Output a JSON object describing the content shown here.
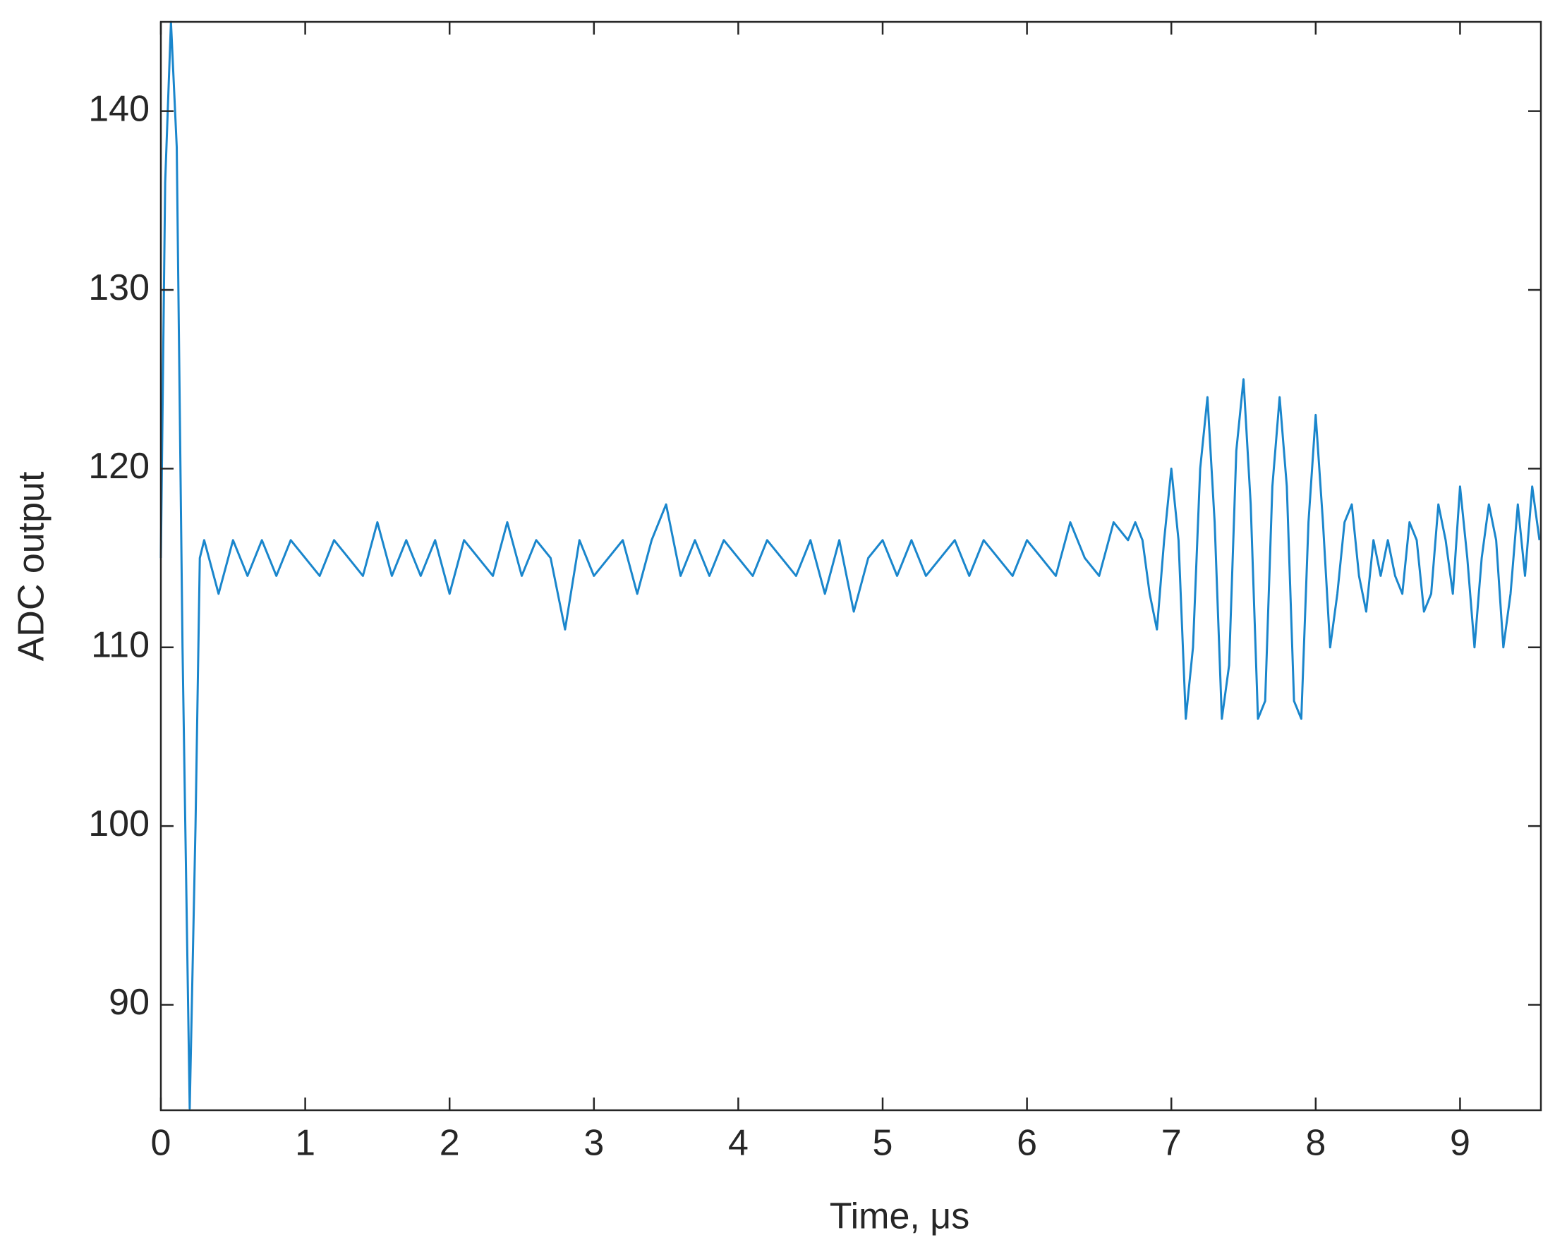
{
  "chart_data": {
    "type": "line",
    "xlabel": "Time, μs",
    "ylabel": "ADC output",
    "x": [
      0,
      0.03,
      0.07,
      0.11,
      0.15,
      0.2,
      0.24,
      0.27,
      0.3,
      0.4,
      0.5,
      0.6,
      0.7,
      0.8,
      0.9,
      1.0,
      1.1,
      1.2,
      1.3,
      1.4,
      1.5,
      1.6,
      1.7,
      1.8,
      1.9,
      2.0,
      2.1,
      2.2,
      2.3,
      2.4,
      2.5,
      2.6,
      2.7,
      2.8,
      2.9,
      3.0,
      3.1,
      3.2,
      3.3,
      3.4,
      3.5,
      3.6,
      3.7,
      3.8,
      3.9,
      4.0,
      4.1,
      4.2,
      4.3,
      4.4,
      4.5,
      4.6,
      4.7,
      4.8,
      4.9,
      5.0,
      5.1,
      5.2,
      5.3,
      5.4,
      5.5,
      5.6,
      5.7,
      5.8,
      5.9,
      6.0,
      6.1,
      6.2,
      6.3,
      6.4,
      6.5,
      6.6,
      6.7,
      6.75,
      6.8,
      6.85,
      6.9,
      6.95,
      7.0,
      7.05,
      7.1,
      7.15,
      7.2,
      7.25,
      7.3,
      7.35,
      7.4,
      7.45,
      7.5,
      7.55,
      7.6,
      7.65,
      7.7,
      7.75,
      7.8,
      7.85,
      7.9,
      7.95,
      8.0,
      8.05,
      8.1,
      8.15,
      8.2,
      8.25,
      8.3,
      8.35,
      8.4,
      8.45,
      8.5,
      8.55,
      8.6,
      8.65,
      8.7,
      8.75,
      8.8,
      8.85,
      8.9,
      8.95,
      9.0,
      9.05,
      9.1,
      9.15,
      9.2,
      9.25,
      9.3,
      9.35,
      9.4,
      9.45,
      9.5,
      9.55
    ],
    "series": [
      {
        "name": "ADC output",
        "color": "#1a86cc",
        "values": [
          115,
          136,
          145,
          138,
          110,
          84.2,
          100,
          115,
          116,
          113,
          116,
          114,
          116,
          114,
          116,
          115,
          114,
          116,
          115,
          114,
          117,
          114,
          116,
          114,
          116,
          113,
          116,
          115,
          114,
          117,
          114,
          116,
          115,
          111,
          116,
          114,
          115,
          116,
          113,
          116,
          118,
          114,
          116,
          114,
          116,
          115,
          114,
          116,
          115,
          114,
          116,
          113,
          116,
          112,
          115,
          116,
          114,
          116,
          114,
          115,
          116,
          114,
          116,
          115,
          114,
          116,
          115,
          114,
          117,
          115,
          114,
          117,
          116,
          117,
          116,
          113,
          111,
          116,
          120,
          116,
          106,
          110,
          120,
          124,
          117,
          106,
          109,
          121,
          125,
          118,
          106,
          107,
          119,
          124,
          119,
          107,
          106,
          117,
          123,
          117,
          110,
          113,
          117,
          118,
          114,
          112,
          116,
          114,
          116,
          114,
          113,
          117,
          116,
          112,
          113,
          118,
          116,
          113,
          119,
          115,
          110,
          115,
          118,
          116,
          110,
          113,
          118,
          114,
          119,
          116
        ]
      }
    ],
    "xlim": [
      0,
      9.56
    ],
    "ylim": [
      84.1,
      145
    ],
    "xticks": [
      0,
      1,
      2,
      3,
      4,
      5,
      6,
      7,
      8,
      9
    ],
    "yticks": [
      90,
      100,
      110,
      120,
      130,
      140
    ],
    "grid": false
  }
}
